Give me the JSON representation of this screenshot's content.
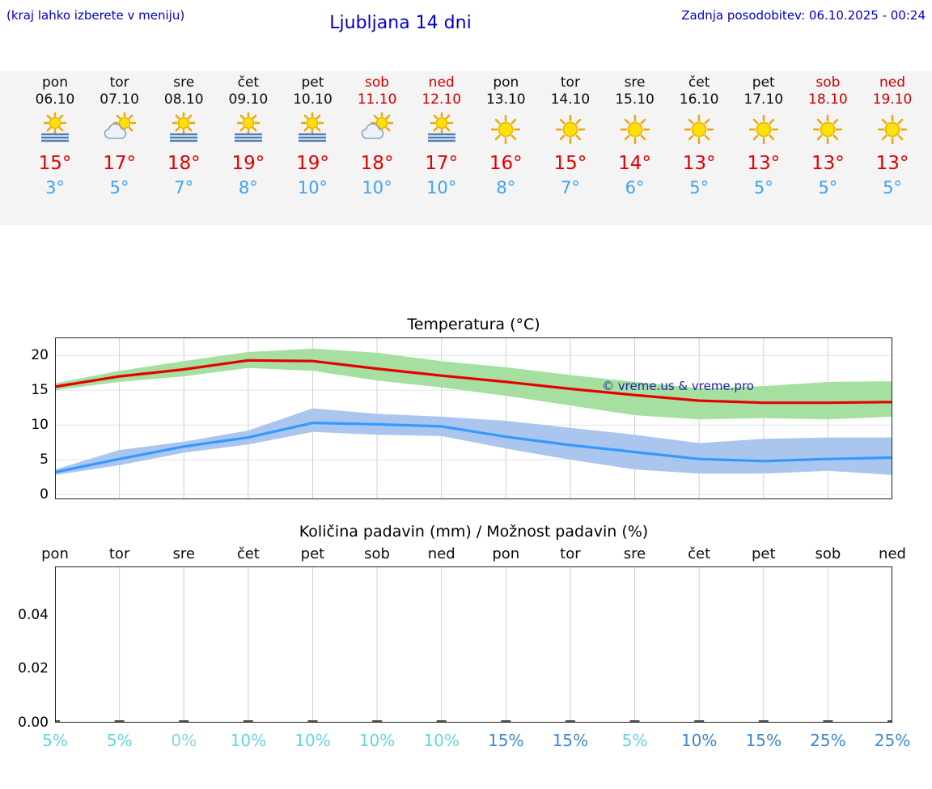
{
  "page": {
    "note": "(kraj lahko izberete v meniju)",
    "title": "Ljubljana 14 dni",
    "updated": "Zadnja posodobitev: 06.10.2025 - 00:24",
    "watermark": "© vreme.us & vreme.pro"
  },
  "colors": {
    "header_blue": "#0000cc",
    "high_red": "#e10000",
    "low_blue": "#3ea2f5",
    "weekend_red": "#cc0000",
    "band_green": "#a5e0a0",
    "band_blue": "#abc6ee"
  },
  "forecast": {
    "days": [
      {
        "day": "pon",
        "date": "06.10",
        "weekend": false,
        "icon": "sun-fog",
        "high": "15°",
        "low": "3°"
      },
      {
        "day": "tor",
        "date": "07.10",
        "weekend": false,
        "icon": "partly-cloudy",
        "high": "17°",
        "low": "5°"
      },
      {
        "day": "sre",
        "date": "08.10",
        "weekend": false,
        "icon": "sun-fog",
        "high": "18°",
        "low": "7°"
      },
      {
        "day": "čet",
        "date": "09.10",
        "weekend": false,
        "icon": "sun-fog",
        "high": "19°",
        "low": "8°"
      },
      {
        "day": "pet",
        "date": "10.10",
        "weekend": false,
        "icon": "sun-fog",
        "high": "19°",
        "low": "10°"
      },
      {
        "day": "sob",
        "date": "11.10",
        "weekend": true,
        "icon": "partly-cloudy",
        "high": "18°",
        "low": "10°"
      },
      {
        "day": "ned",
        "date": "12.10",
        "weekend": true,
        "icon": "sun-fog",
        "high": "17°",
        "low": "10°"
      },
      {
        "day": "pon",
        "date": "13.10",
        "weekend": false,
        "icon": "sun",
        "high": "16°",
        "low": "8°"
      },
      {
        "day": "tor",
        "date": "14.10",
        "weekend": false,
        "icon": "sun",
        "high": "15°",
        "low": "7°"
      },
      {
        "day": "sre",
        "date": "15.10",
        "weekend": false,
        "icon": "sun",
        "high": "14°",
        "low": "6°"
      },
      {
        "day": "čet",
        "date": "16.10",
        "weekend": false,
        "icon": "sun",
        "high": "13°",
        "low": "5°"
      },
      {
        "day": "pet",
        "date": "17.10",
        "weekend": false,
        "icon": "sun",
        "high": "13°",
        "low": "5°"
      },
      {
        "day": "sob",
        "date": "18.10",
        "weekend": true,
        "icon": "sun",
        "high": "13°",
        "low": "5°"
      },
      {
        "day": "ned",
        "date": "19.10",
        "weekend": true,
        "icon": "sun",
        "high": "13°",
        "low": "5°"
      }
    ]
  },
  "chart_data": [
    {
      "type": "line",
      "title": "Temperatura (°C)",
      "x": [
        "pon",
        "tor",
        "sre",
        "čet",
        "pet",
        "sob",
        "ned",
        "pon",
        "tor",
        "sre",
        "čet",
        "pet",
        "sob",
        "ned"
      ],
      "yticks": [
        0,
        5,
        10,
        15,
        20
      ],
      "ylim": [
        -0.7,
        22.6
      ],
      "grid": true,
      "legend_position": "none",
      "series": [
        {
          "name": "max-temperature",
          "color": "#e60000",
          "band_color": "#a5e0a0",
          "values": [
            15.5,
            17,
            18,
            19.3,
            19.2,
            18.1,
            17.1,
            16.2,
            15.2,
            14.3,
            13.5,
            13.2,
            13.2,
            13.3
          ],
          "band_upper": [
            16,
            17.8,
            19.2,
            20.5,
            21,
            20.4,
            19.2,
            18.3,
            17.2,
            16.2,
            15.3,
            15.6,
            16.2,
            16.3
          ],
          "band_lower": [
            15,
            16.2,
            17,
            18.2,
            17.8,
            16.4,
            15.4,
            14.2,
            12.8,
            11.4,
            10.8,
            11,
            10.8,
            11.2
          ]
        },
        {
          "name": "min-temperature",
          "color": "#3399ff",
          "band_color": "#abc6ee",
          "values": [
            3.2,
            5.1,
            6.9,
            8.2,
            10.3,
            10.1,
            9.8,
            8.3,
            7.1,
            6.1,
            5.1,
            4.8,
            5.1,
            5.3
          ],
          "band_upper": [
            3.6,
            6.4,
            7.6,
            9.2,
            12.4,
            11.6,
            11.2,
            10.6,
            9.6,
            8.6,
            7.4,
            8,
            8.2,
            8.2
          ],
          "band_lower": [
            2.8,
            4.2,
            6,
            7.2,
            9,
            8.6,
            8.4,
            6.6,
            5,
            3.6,
            3,
            3,
            3.4,
            2.8
          ]
        }
      ]
    },
    {
      "type": "bar",
      "title": "Količina padavin (mm) / Možnost padavin (%)",
      "categories": [
        "pon",
        "tor",
        "sre",
        "čet",
        "pet",
        "sob",
        "ned",
        "pon",
        "tor",
        "sre",
        "čet",
        "pet",
        "sob",
        "ned"
      ],
      "values": [
        0,
        0,
        0,
        0,
        0,
        0,
        0,
        0,
        0,
        0,
        0,
        0,
        0,
        0
      ],
      "yticks": [
        0,
        0.02,
        0.04
      ],
      "ytick_labels": [
        "0.00",
        "0.02",
        "0.04"
      ],
      "ylim": [
        0,
        0.058
      ],
      "grid": true,
      "percent_labels": [
        "5%",
        "5%",
        "0%",
        "10%",
        "10%",
        "10%",
        "10%",
        "15%",
        "15%",
        "5%",
        "10%",
        "15%",
        "25%",
        "25%"
      ],
      "percent_colors": [
        "#62d4e3",
        "#62d4e3",
        "#8ad3da",
        "#62d4e3",
        "#62d4e3",
        "#62d4e3",
        "#62d4e3",
        "#3d87cc",
        "#3d87cc",
        "#62d4e3",
        "#3d87cc",
        "#3d87cc",
        "#3d87cc",
        "#3d87cc"
      ]
    }
  ]
}
